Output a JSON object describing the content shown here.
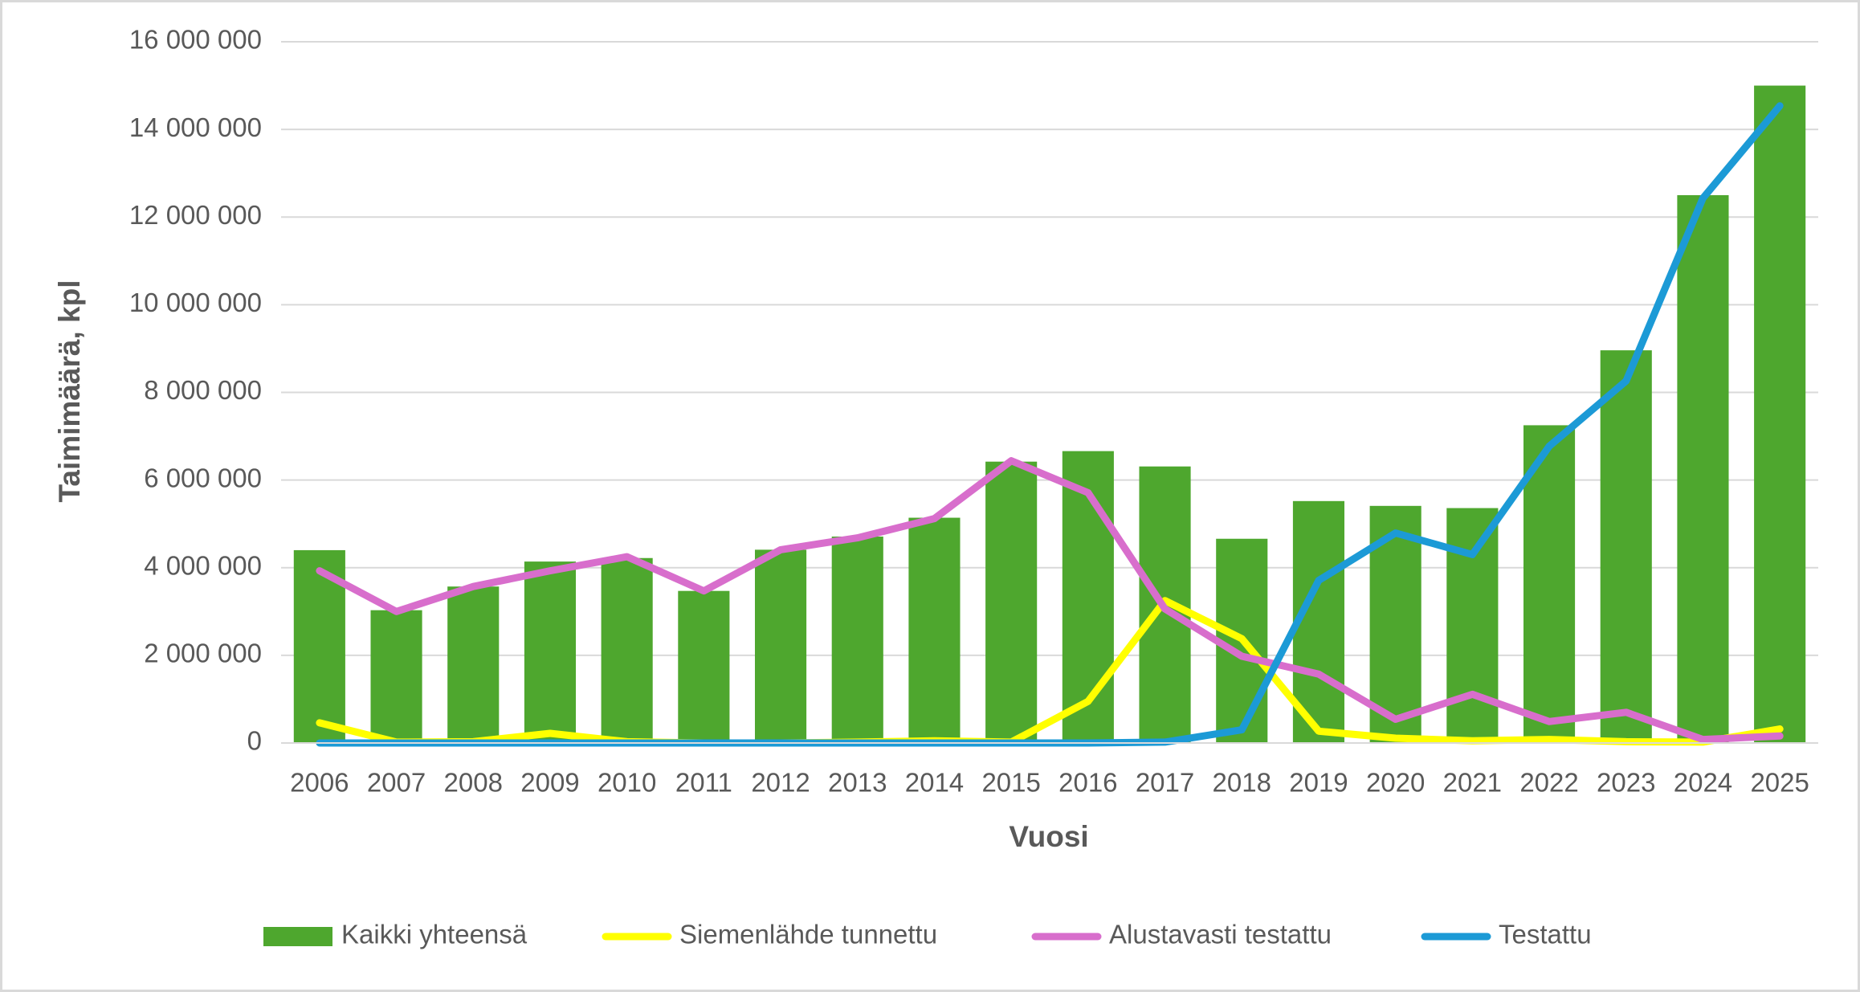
{
  "chart_data": {
    "type": "combo",
    "x_label": "Vuosi",
    "y_label": "Taimimäärä, kpl",
    "categories": [
      "2006",
      "2007",
      "2008",
      "2009",
      "2010",
      "2011",
      "2012",
      "2013",
      "2014",
      "2015",
      "2016",
      "2017",
      "2018",
      "2019",
      "2020",
      "2021",
      "2022",
      "2023",
      "2024",
      "2025"
    ],
    "series": [
      {
        "name": "Kaikki yhteensä",
        "type": "bar",
        "color": "#4ea72e",
        "values": [
          4400000,
          3030000,
          3570000,
          4140000,
          4220000,
          3470000,
          4410000,
          4710000,
          5140000,
          6420000,
          6660000,
          6310000,
          4660000,
          5520000,
          5410000,
          5360000,
          7250000,
          8960000,
          12500000,
          15000000
        ]
      },
      {
        "name": "Siemenlähde tunnettu",
        "type": "line",
        "color": "#ffff00",
        "values": [
          460000,
          20000,
          30000,
          220000,
          30000,
          0,
          0,
          20000,
          50000,
          20000,
          950000,
          3250000,
          2380000,
          270000,
          110000,
          50000,
          80000,
          30000,
          20000,
          320000
        ]
      },
      {
        "name": "Alustavasti testattu",
        "type": "line",
        "color": "#d86ecc",
        "values": [
          3930000,
          3000000,
          3570000,
          3930000,
          4250000,
          3470000,
          4410000,
          4680000,
          5120000,
          6440000,
          5710000,
          3060000,
          1980000,
          1570000,
          540000,
          1110000,
          490000,
          700000,
          80000,
          160000
        ]
      },
      {
        "name": "Testattu",
        "type": "line",
        "color": "#1c9ad6",
        "values": [
          0,
          0,
          0,
          0,
          0,
          0,
          0,
          0,
          0,
          0,
          0,
          20000,
          300000,
          3710000,
          4790000,
          4300000,
          6770000,
          8260000,
          12430000,
          14540000
        ]
      }
    ],
    "ylim": [
      0,
      16000000
    ],
    "yticks": [
      0,
      {
        "value": 2000000,
        "label": "2 000 000"
      },
      {
        "value": 4000000,
        "label": "4 000 000"
      },
      {
        "value": 6000000,
        "label": "6 000 000"
      },
      {
        "value": 8000000,
        "label": "8 000 000"
      },
      {
        "value": 10000000,
        "label": "10 000 000"
      },
      {
        "value": 12000000,
        "label": "12 000 000"
      },
      {
        "value": 14000000,
        "label": "14 000 000"
      },
      {
        "value": 16000000,
        "label": "16 000 000"
      }
    ],
    "grid": true,
    "legend": "bottom"
  }
}
